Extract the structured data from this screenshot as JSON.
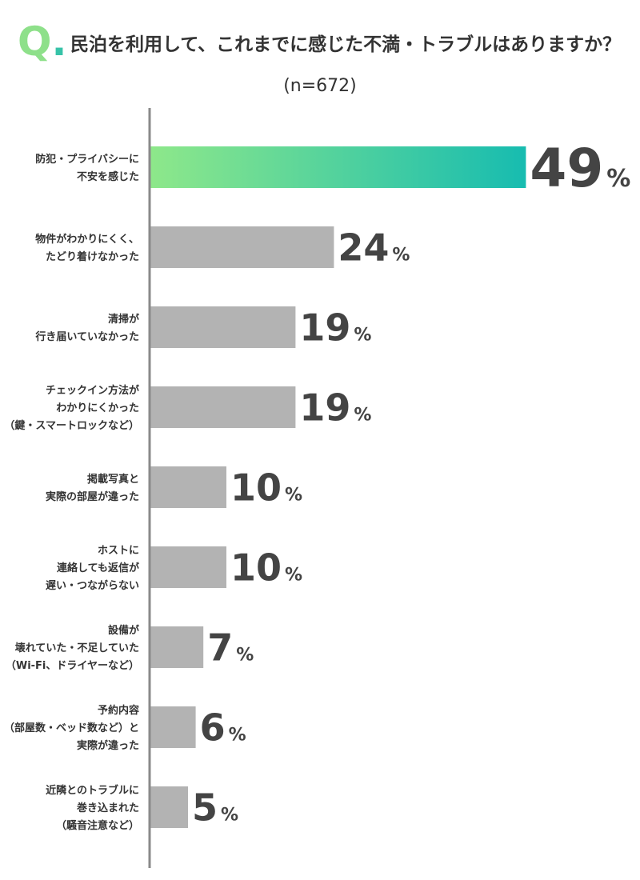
{
  "header": {
    "q_letter": "Q",
    "q_dot": ".",
    "question": "民泊を利用して、これまでに感じた不満・トラブルはありますか？",
    "sample": "(n=672)"
  },
  "colors": {
    "highlight_start": "#8ee88a",
    "highlight_end": "#17bcb0",
    "bar": "#b3b3b3",
    "axis": "#8a8a8a",
    "text": "#333333"
  },
  "chart_data": {
    "type": "bar",
    "orientation": "horizontal",
    "unit": "%",
    "xlim": [
      0,
      100
    ],
    "categories": [
      [
        "防犯・プライバシーに",
        "不安を感じた"
      ],
      [
        "物件がわかりにくく、",
        "たどり着けなかった"
      ],
      [
        "清掃が",
        "行き届いていなかった"
      ],
      [
        "チェックイン方法が",
        "わかりにくかった",
        "（鍵・スマートロックなど）"
      ],
      [
        "掲載写真と",
        "実際の部屋が違った"
      ],
      [
        "ホストに",
        "連絡しても返信が",
        "遅い・つながらない"
      ],
      [
        "設備が",
        "壊れていた・不足していた",
        "（Wi-Fi、ドライヤーなど）"
      ],
      [
        "予約内容",
        "（部屋数・ベッド数など）と",
        "実際が違った"
      ],
      [
        "近隣とのトラブルに",
        "巻き込まれた",
        "（騒音注意など）"
      ]
    ],
    "values": [
      49,
      24,
      19,
      19,
      10,
      10,
      7,
      6,
      5
    ],
    "highlight_index": 0
  }
}
